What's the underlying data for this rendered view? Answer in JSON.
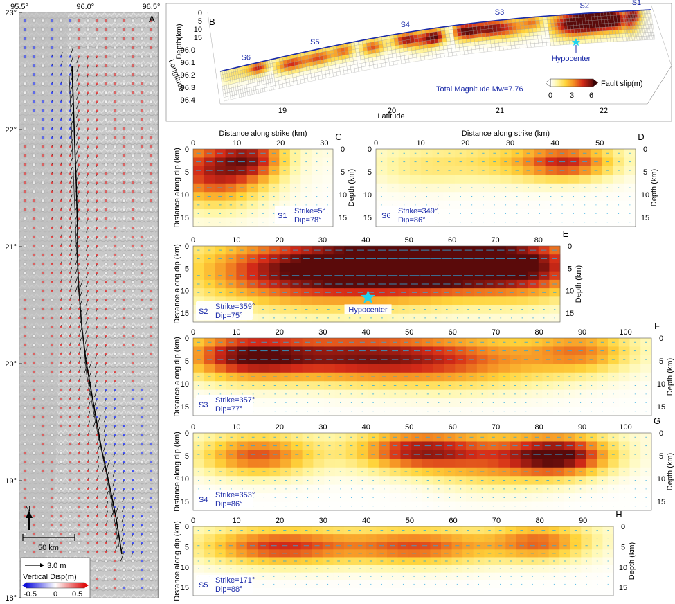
{
  "chart_data": [
    {
      "panel": "A",
      "type": "vector-map",
      "x_ticks": [
        "95.5°",
        "96.0°",
        "96.5°"
      ],
      "y_ticks": [
        "23°",
        "22°",
        "21°",
        "20°",
        "19°",
        "18°"
      ],
      "xlim": [
        95.5,
        96.55
      ],
      "ylim": [
        18.0,
        23.0
      ],
      "north_label": "N",
      "scalebar_label": "50 km",
      "vector_scale_label": "3.0 m",
      "colorbar_title": "Vertical Disp(m)",
      "colorbar_ticks": [
        "-0.5",
        "0",
        "0.5"
      ],
      "colorbar_range": [
        -0.5,
        0.5
      ]
    },
    {
      "panel": "B",
      "type": "3d-surface",
      "zlabel": "Depth(km)",
      "z_ticks": [
        "0",
        "5",
        "10",
        "15"
      ],
      "longitude_label": "Longitude",
      "longitude_ticks": [
        "96.0",
        "96.1",
        "96.2",
        "96.3",
        "96.4"
      ],
      "latitude_label": "Latitude",
      "latitude_ticks": [
        "19",
        "20",
        "21",
        "22"
      ],
      "segments": [
        "S1",
        "S2",
        "S3",
        "S4",
        "S5",
        "S6"
      ],
      "hypocenter_label": "Hypocenter",
      "magnitude_text": "Total Magnitude Mw=7.76",
      "colorbar_title": "Fault slip(m)",
      "colorbar_ticks": [
        "0",
        "3",
        "6"
      ],
      "colorbar_range": [
        0,
        7
      ]
    }
  ],
  "slip_common": {
    "xlabel": "Distance along strike (km)",
    "ylabel": "Distance along dip (km)",
    "ylabel_right": "Depth (km)",
    "dip_ticks": [
      "0",
      "5",
      "10",
      "15"
    ],
    "depth_max": 17
  },
  "slip_panels": [
    {
      "letter": "C",
      "segment": "S1",
      "strike": "Strike=5°",
      "dip": "Dip=78°",
      "length": 32,
      "x_ticks": [
        "0",
        "10",
        "20",
        "30"
      ],
      "x_values": [
        0,
        10,
        20,
        30
      ],
      "depth_ticks": [
        "0",
        "5",
        "10",
        "15"
      ],
      "depth_values": [
        0,
        5,
        10,
        15
      ],
      "patches": [
        {
          "x": 5,
          "z": 5,
          "sx": 8,
          "sz": 5,
          "amp": 5.5
        },
        {
          "x": 14,
          "z": 2,
          "sx": 5,
          "sz": 3,
          "amp": 3.5
        }
      ]
    },
    {
      "letter": "D",
      "segment": "S6",
      "strike": "Strike=349°",
      "dip": "Dip=86°",
      "length": 58,
      "x_ticks": [
        "0",
        "10",
        "20",
        "30",
        "40",
        "50"
      ],
      "x_values": [
        0,
        10,
        20,
        30,
        40,
        50
      ],
      "depth_ticks": [
        "0",
        "5",
        "10",
        "15"
      ],
      "depth_values": [
        0,
        5,
        10,
        15
      ],
      "patches": [
        {
          "x": 43,
          "z": 3,
          "sx": 7,
          "sz": 2.5,
          "amp": 4.5
        },
        {
          "x": 30,
          "z": 3,
          "sx": 10,
          "sz": 3,
          "amp": 1.8
        },
        {
          "x": 10,
          "z": 4,
          "sx": 8,
          "sz": 3,
          "amp": 1.2
        }
      ]
    },
    {
      "letter": "E",
      "segment": "S2",
      "strike": "Strike=359°",
      "dip": "Dip=75°",
      "length": 85,
      "x_ticks": [
        "0",
        "10",
        "20",
        "30",
        "40",
        "50",
        "60",
        "70",
        "80"
      ],
      "x_values": [
        0,
        10,
        20,
        30,
        40,
        50,
        60,
        70,
        80
      ],
      "depth_ticks": [
        "0",
        "5",
        "10",
        "15"
      ],
      "depth_values": [
        0,
        5,
        10,
        15
      ],
      "hypocenter": {
        "x": 40.5,
        "z": 11.5,
        "label": "Hypocenter"
      },
      "patches": [
        {
          "x": 58,
          "z": 4,
          "sx": 15,
          "sz": 4,
          "amp": 7
        },
        {
          "x": 42,
          "z": 5,
          "sx": 18,
          "sz": 5.5,
          "amp": 5
        },
        {
          "x": 20,
          "z": 6,
          "sx": 15,
          "sz": 5,
          "amp": 4
        },
        {
          "x": 78,
          "z": 5,
          "sx": 10,
          "sz": 5,
          "amp": 4
        }
      ]
    },
    {
      "letter": "F",
      "segment": "S3",
      "strike": "Strike=357°",
      "dip": "Dip=77°",
      "length": 106,
      "x_ticks": [
        "0",
        "10",
        "20",
        "30",
        "40",
        "50",
        "60",
        "70",
        "80",
        "90",
        "100"
      ],
      "x_values": [
        0,
        10,
        20,
        30,
        40,
        50,
        60,
        70,
        80,
        90,
        100
      ],
      "depth_ticks": [
        "0",
        "5",
        "10",
        "15"
      ],
      "depth_values": [
        0,
        5,
        10,
        15
      ],
      "patches": [
        {
          "x": 12,
          "z": 4,
          "sx": 10,
          "sz": 3.5,
          "amp": 5.5
        },
        {
          "x": 35,
          "z": 4,
          "sx": 15,
          "sz": 3.5,
          "amp": 4.5
        },
        {
          "x": 60,
          "z": 5,
          "sx": 18,
          "sz": 4,
          "amp": 4
        },
        {
          "x": 90,
          "z": 3,
          "sx": 8,
          "sz": 3,
          "amp": 3
        }
      ]
    },
    {
      "letter": "G",
      "segment": "S4",
      "strike": "Strike=353°",
      "dip": "Dip=86°",
      "length": 106,
      "x_ticks": [
        "0",
        "10",
        "20",
        "30",
        "40",
        "50",
        "60",
        "70",
        "80",
        "90",
        "100"
      ],
      "x_values": [
        0,
        10,
        20,
        30,
        40,
        50,
        60,
        70,
        80,
        90,
        100
      ],
      "depth_ticks": [
        "0",
        "5",
        "10",
        "15"
      ],
      "depth_values": [
        0,
        5,
        10,
        15
      ],
      "patches": [
        {
          "x": 15,
          "z": 5,
          "sx": 9,
          "sz": 3,
          "amp": 4.5
        },
        {
          "x": 52,
          "z": 4,
          "sx": 10,
          "sz": 3,
          "amp": 5.5
        },
        {
          "x": 85,
          "z": 5,
          "sx": 8,
          "sz": 3,
          "amp": 6.5
        },
        {
          "x": 70,
          "z": 6,
          "sx": 10,
          "sz": 4,
          "amp": 3
        }
      ]
    },
    {
      "letter": "H",
      "segment": "S5",
      "strike": "Strike=171°",
      "dip": "Dip=88°",
      "length": 97,
      "x_ticks": [
        "0",
        "10",
        "20",
        "30",
        "40",
        "50",
        "60",
        "70",
        "80",
        "90"
      ],
      "x_values": [
        0,
        10,
        20,
        30,
        40,
        50,
        60,
        70,
        80,
        90
      ],
      "depth_ticks": [
        "0",
        "5",
        "10",
        "15"
      ],
      "depth_values": [
        0,
        5,
        10,
        15
      ],
      "patches": [
        {
          "x": 20,
          "z": 5,
          "sx": 12,
          "sz": 3,
          "amp": 5
        },
        {
          "x": 52,
          "z": 5,
          "sx": 12,
          "sz": 3,
          "amp": 4.5
        },
        {
          "x": 80,
          "z": 4,
          "sx": 8,
          "sz": 3,
          "amp": 4
        }
      ]
    }
  ]
}
